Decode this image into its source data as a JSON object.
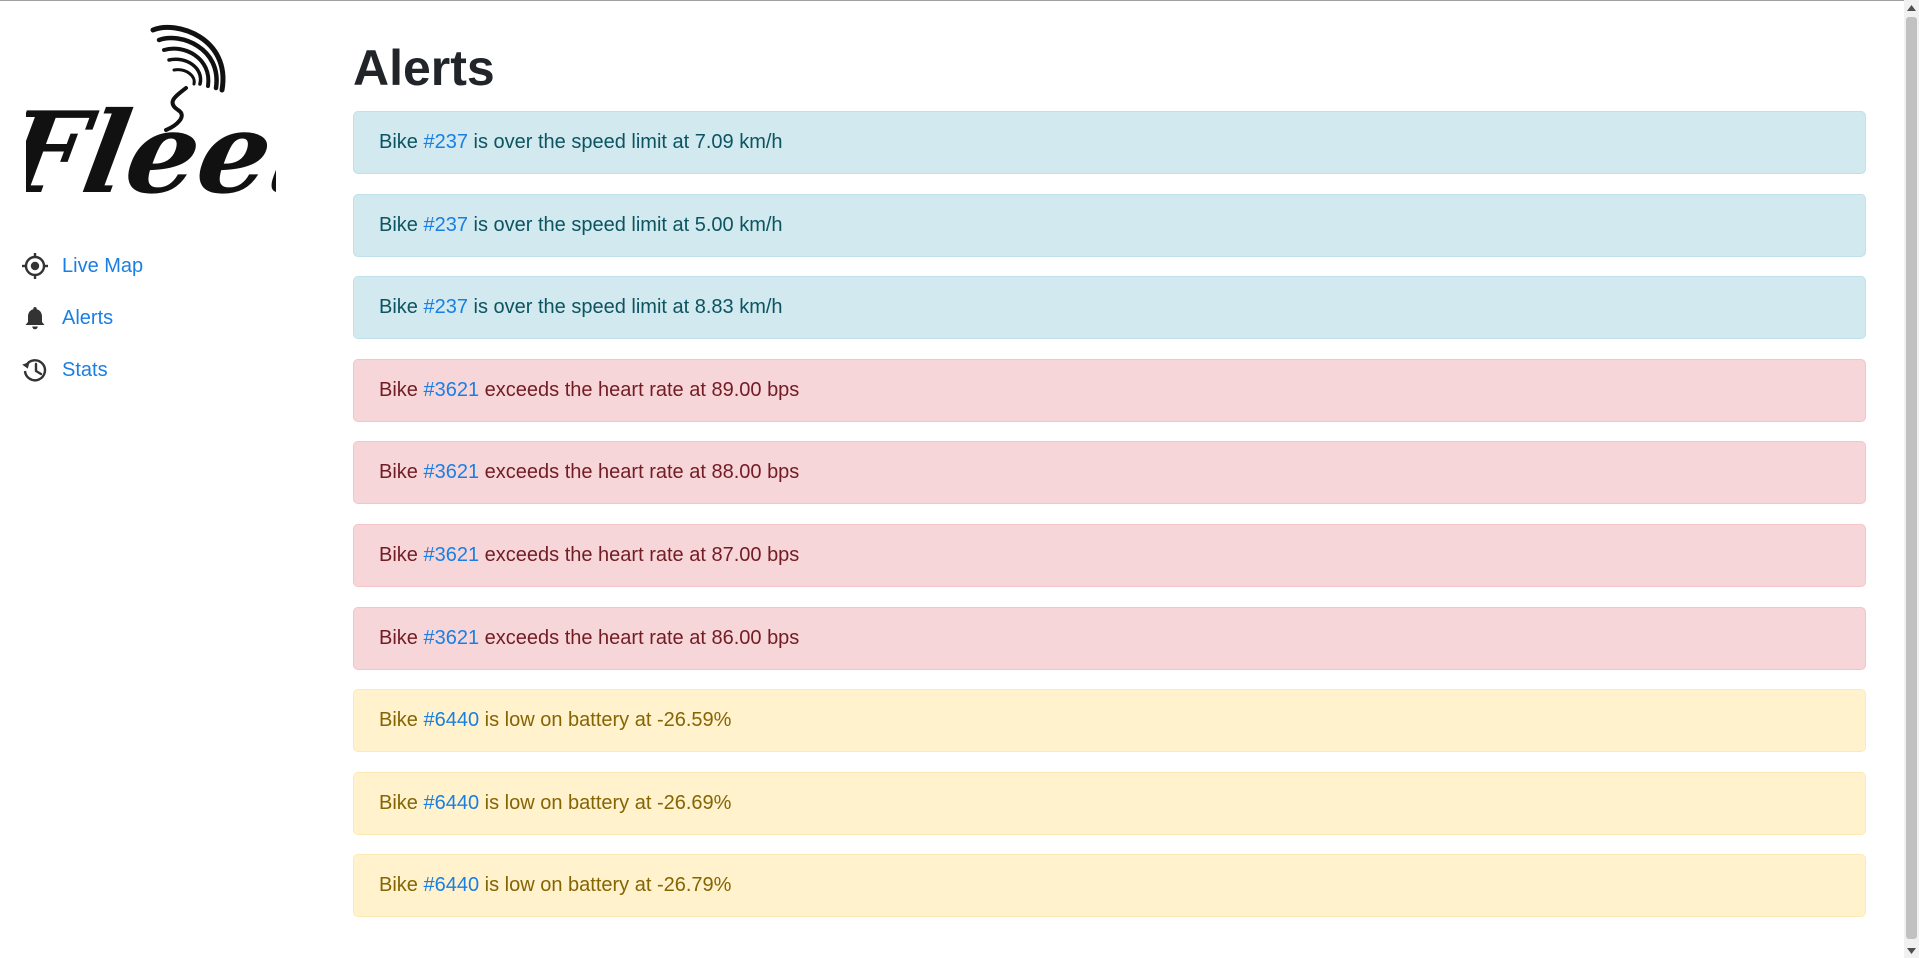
{
  "app": {
    "logo_text": "Fleet"
  },
  "sidebar": {
    "items": [
      {
        "label": "Live Map",
        "icon": "crosshairs-icon"
      },
      {
        "label": "Alerts",
        "icon": "bell-icon"
      },
      {
        "label": "Stats",
        "icon": "history-icon"
      }
    ]
  },
  "page": {
    "title": "Alerts"
  },
  "alerts": [
    {
      "type": "info",
      "prefix": "Bike ",
      "bike": "#237",
      "message": " is over the speed limit at 7.09 km/h"
    },
    {
      "type": "info",
      "prefix": "Bike ",
      "bike": "#237",
      "message": " is over the speed limit at 5.00 km/h"
    },
    {
      "type": "info",
      "prefix": "Bike ",
      "bike": "#237",
      "message": " is over the speed limit at 8.83 km/h"
    },
    {
      "type": "danger",
      "prefix": "Bike ",
      "bike": "#3621",
      "message": " exceeds the heart rate at 89.00 bps"
    },
    {
      "type": "danger",
      "prefix": "Bike ",
      "bike": "#3621",
      "message": " exceeds the heart rate at 88.00 bps"
    },
    {
      "type": "danger",
      "prefix": "Bike ",
      "bike": "#3621",
      "message": " exceeds the heart rate at 87.00 bps"
    },
    {
      "type": "danger",
      "prefix": "Bike ",
      "bike": "#3621",
      "message": " exceeds the heart rate at 86.00 bps"
    },
    {
      "type": "warning",
      "prefix": "Bike ",
      "bike": "#6440",
      "message": " is low on battery at -26.59%"
    },
    {
      "type": "warning",
      "prefix": "Bike ",
      "bike": "#6440",
      "message": " is low on battery at -26.69%"
    },
    {
      "type": "warning",
      "prefix": "Bike ",
      "bike": "#6440",
      "message": " is low on battery at -26.79%"
    }
  ],
  "colors": {
    "link": "#1a7fe3",
    "info_bg": "#d1e9ef",
    "danger_bg": "#f7d6da",
    "warning_bg": "#fff2cc"
  }
}
